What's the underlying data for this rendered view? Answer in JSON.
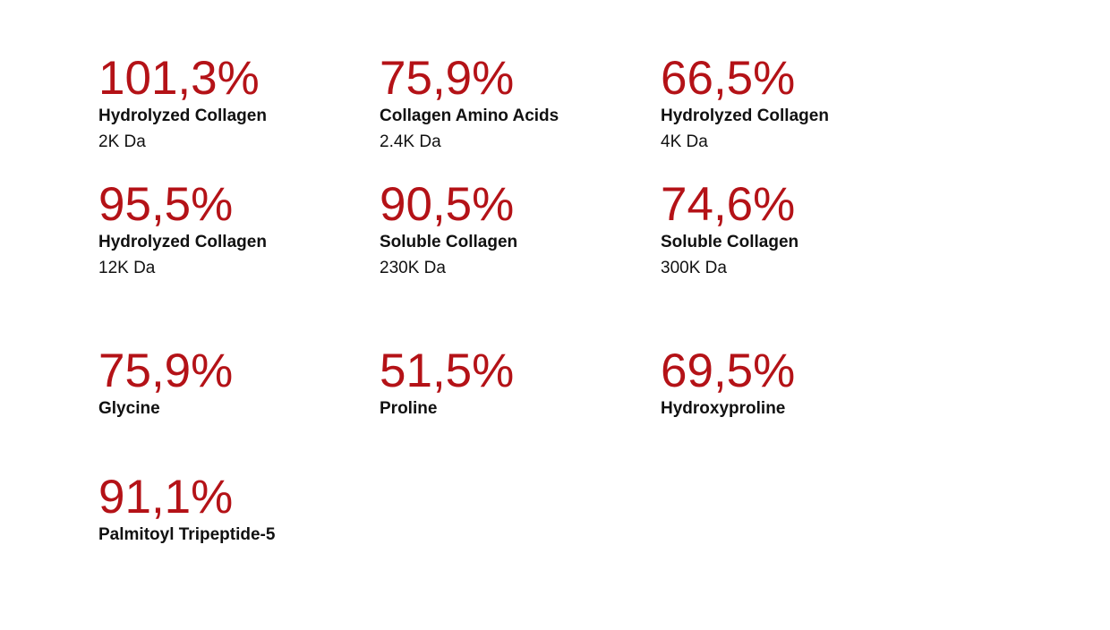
{
  "colors": {
    "accent": "#b41217",
    "text": "#111111",
    "background": "#ffffff"
  },
  "stats": [
    {
      "value": "101,3%",
      "name": "Hydrolyzed Collagen",
      "detail": "2K Da"
    },
    {
      "value": "75,9%",
      "name": "Collagen Amino Acids",
      "detail": "2.4K Da"
    },
    {
      "value": "66,5%",
      "name": "Hydrolyzed Collagen",
      "detail": "4K Da"
    },
    {
      "value": "95,5%",
      "name": "Hydrolyzed Collagen",
      "detail": "12K Da"
    },
    {
      "value": "90,5%",
      "name": "Soluble Collagen",
      "detail": "230K Da"
    },
    {
      "value": "74,6%",
      "name": "Soluble Collagen",
      "detail": "300K Da"
    },
    {
      "value": "75,9%",
      "name": "Glycine"
    },
    {
      "value": "51,5%",
      "name": "Proline"
    },
    {
      "value": "69,5%",
      "name": "Hydroxyproline"
    },
    {
      "value": "91,1%",
      "name": "Palmitoyl Tripeptide-5"
    }
  ]
}
